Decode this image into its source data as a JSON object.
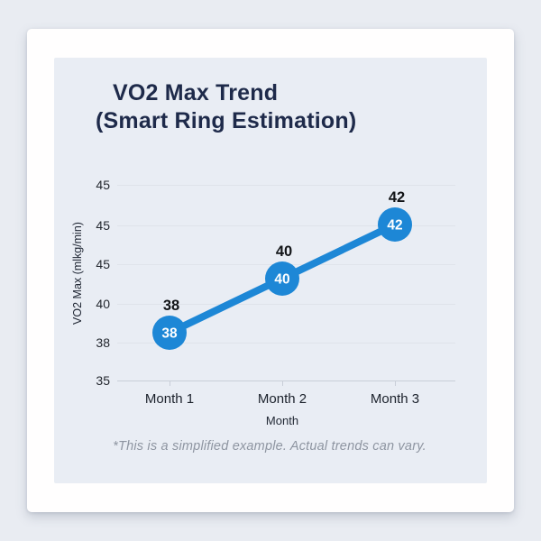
{
  "title": {
    "line1": "VO2 Max Trend",
    "line2": "(Smart Ring Estimation)"
  },
  "footnote": "*This is a simplified example. Actual trends can vary.",
  "chart_data": {
    "type": "line",
    "title": "VO2 Max Trend (Smart Ring Estimation)",
    "categories": [
      "Month 1",
      "Month 2",
      "Month 3"
    ],
    "values": [
      38,
      40,
      42
    ],
    "point_labels": [
      "38",
      "40",
      "42"
    ],
    "marker_value_labels": [
      "38",
      "40",
      "42"
    ],
    "xlabel": "Month",
    "ylabel": "VO2 Max (mlkg/min)",
    "y_tick_labels_top_to_bottom": [
      "45",
      "45",
      "45",
      "40",
      "38",
      "35"
    ],
    "grid": true,
    "legend": false,
    "markers": "filled-circle-with-value"
  },
  "colors": {
    "page_background": "#e9ecf2",
    "card_background": "#fffefe",
    "panel_background": "#e9edf4",
    "title_text": "#1e2a4a",
    "line_and_marker": "#1d87d6",
    "marker_text": "#ffffff",
    "point_label_text": "#121417",
    "footnote_text": "#8e95a1",
    "gridline": "#dfe3ea",
    "axis_line": "#c9ced8"
  }
}
